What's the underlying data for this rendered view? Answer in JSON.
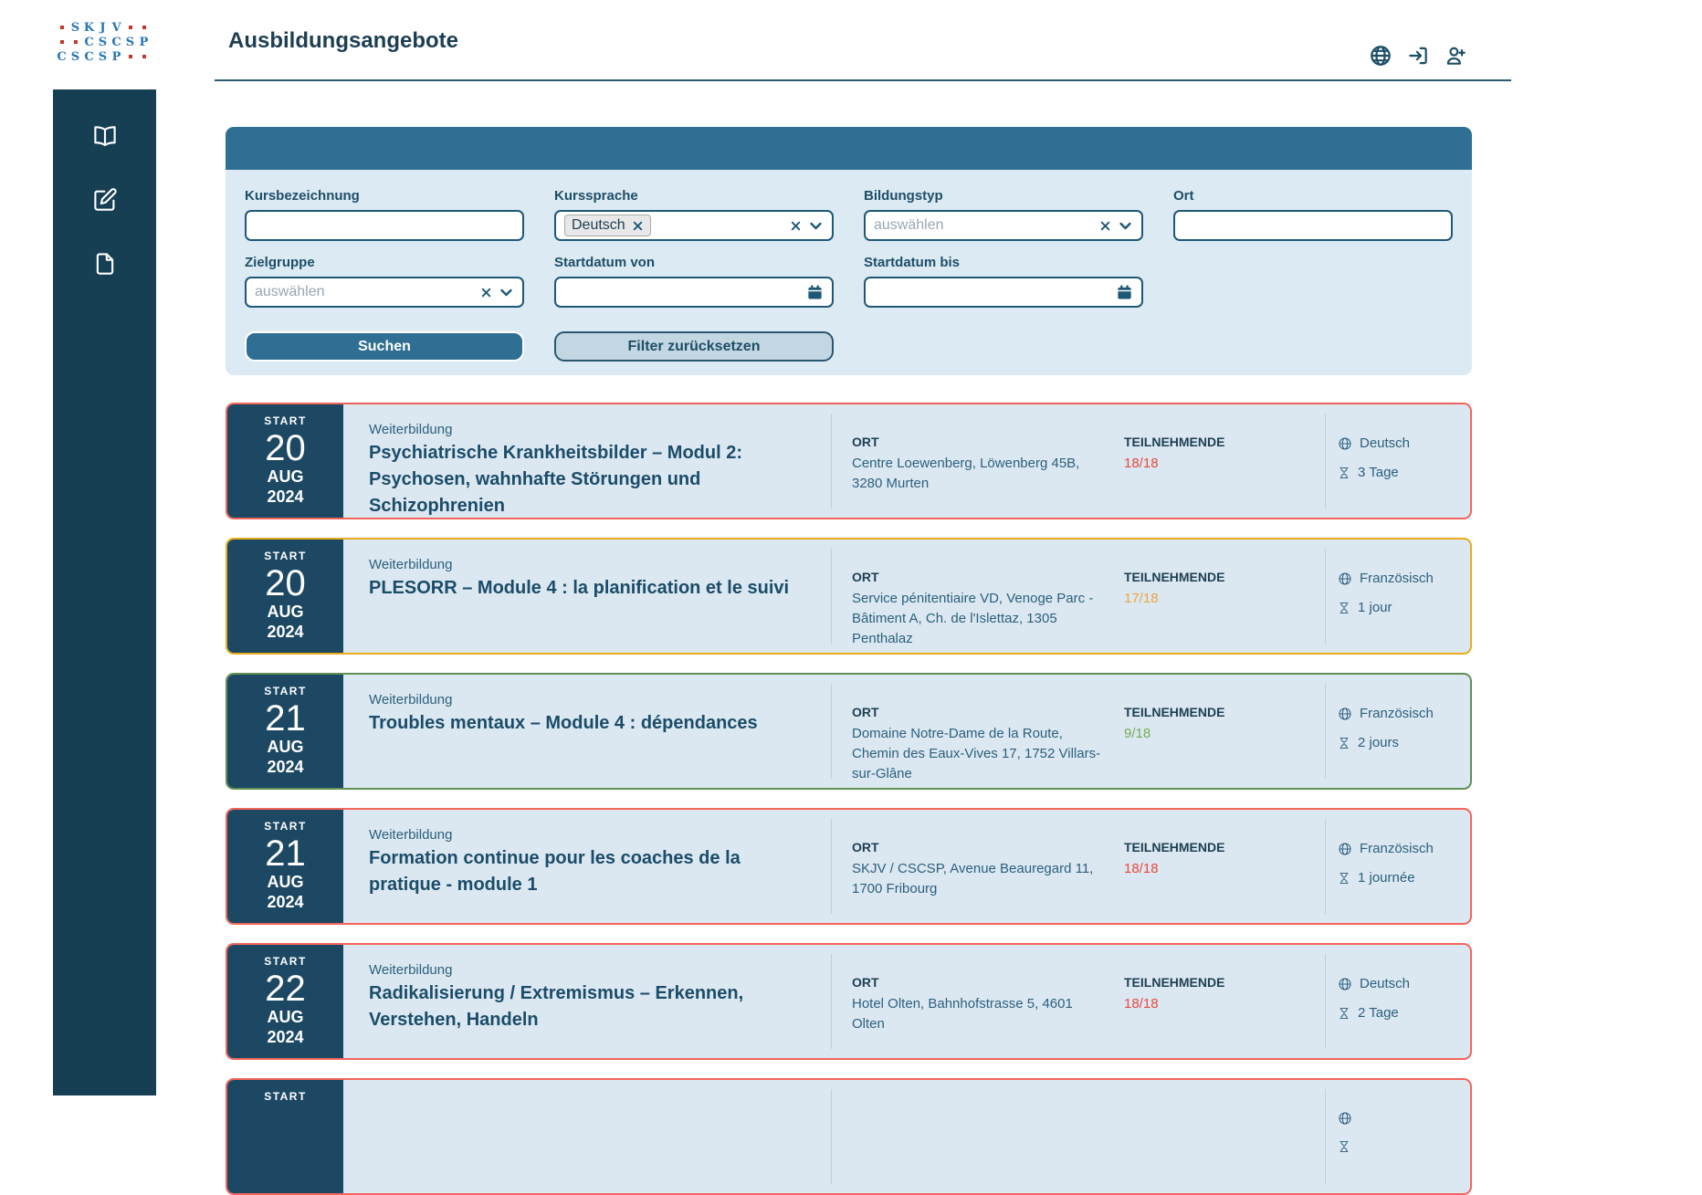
{
  "colors": {
    "sidebar_bg": "#173f54",
    "band_blue": "#2e6f93",
    "panel_bg": "#dceaf4",
    "card_bg": "#dbe8f2",
    "date_block_bg": "#1c4863",
    "heading_text": "#1d3e52",
    "body_text": "#2d5f7c",
    "status_red": "#e8493e",
    "status_orange": "#eda53c",
    "status_green": "#76ab57",
    "border_red": "#f3655a",
    "border_yellow": "#e8ac1e",
    "border_green": "#5f9054"
  },
  "logo": {
    "rows": [
      [
        "•",
        "S",
        "K",
        "J",
        "V",
        "•",
        "•"
      ],
      [
        "•",
        "•",
        "C",
        "S",
        "C",
        "S",
        "P"
      ],
      [
        "C",
        "S",
        "C",
        "S",
        "P",
        "•",
        "•"
      ]
    ]
  },
  "header": {
    "title": "Ausbildungsangebote",
    "icons": [
      "globe",
      "login",
      "user-plus"
    ]
  },
  "sidebar": {
    "items": [
      "book",
      "edit",
      "document"
    ]
  },
  "filter": {
    "fields": {
      "kursbezeichnung": {
        "label": "Kursbezeichnung",
        "value": ""
      },
      "kurssprache": {
        "label": "Kurssprache",
        "chips": [
          "Deutsch"
        ]
      },
      "bildungstyp": {
        "label": "Bildungstyp",
        "placeholder": "auswählen"
      },
      "ort": {
        "label": "Ort",
        "value": ""
      },
      "zielgruppe": {
        "label": "Zielgruppe",
        "placeholder": "auswählen"
      },
      "startdatum_von": {
        "label": "Startdatum von",
        "value": ""
      },
      "startdatum_bis": {
        "label": "Startdatum bis",
        "value": ""
      }
    },
    "buttons": {
      "search": "Suchen",
      "reset": "Filter zurücksetzen"
    }
  },
  "cards": [
    {
      "start_label": "START",
      "day": "20",
      "month": "AUG",
      "year": "2024",
      "category": "Weiterbildung",
      "title": "Psychiatrische Krankheitsbilder – Modul 2: Psychosen, wahnhafte Störungen und Schizophrenien",
      "ort_label": "ORT",
      "ort": "Centre Loewenberg, Löwenberg 45B, 3280 Murten",
      "participants_label": "TEILNEHMENDE",
      "participants": "18/18",
      "participants_color": "#e8493e",
      "language": "Deutsch",
      "duration": "3 Tage",
      "border_color": "#f3655a"
    },
    {
      "start_label": "START",
      "day": "20",
      "month": "AUG",
      "year": "2024",
      "category": "Weiterbildung",
      "title": "PLESORR – Module 4 : la planification et le suivi",
      "ort_label": "ORT",
      "ort": "Service pénitentiaire VD, Venoge Parc - Bâtiment A, Ch. de l'Islettaz, 1305 Penthalaz",
      "participants_label": "TEILNEHMENDE",
      "participants": "17/18",
      "participants_color": "#eda53c",
      "language": "Französisch",
      "duration": "1 jour",
      "border_color": "#e8ac1e"
    },
    {
      "start_label": "START",
      "day": "21",
      "month": "AUG",
      "year": "2024",
      "category": "Weiterbildung",
      "title": "Troubles mentaux – Module 4 : dépendances",
      "ort_label": "ORT",
      "ort": "Domaine Notre-Dame de la Route, Chemin des Eaux-Vives 17, 1752 Villars-sur-Glâne",
      "participants_label": "TEILNEHMENDE",
      "participants": "9/18",
      "participants_color": "#76ab57",
      "language": "Französisch",
      "duration": "2 jours",
      "border_color": "#5f9054"
    },
    {
      "start_label": "START",
      "day": "21",
      "month": "AUG",
      "year": "2024",
      "category": "Weiterbildung",
      "title": "Formation continue pour les coaches de la pratique - module 1",
      "ort_label": "ORT",
      "ort": "SKJV / CSCSP, Avenue Beauregard 11, 1700 Fribourg",
      "participants_label": "TEILNEHMENDE",
      "participants": "18/18",
      "participants_color": "#e8493e",
      "language": "Französisch",
      "duration": "1 journée",
      "border_color": "#f3655a"
    },
    {
      "start_label": "START",
      "day": "22",
      "month": "AUG",
      "year": "2024",
      "category": "Weiterbildung",
      "title": "Radikalisierung / Extremismus – Erkennen, Verstehen, Handeln",
      "ort_label": "ORT",
      "ort": "Hotel Olten, Bahnhofstrasse 5, 4601 Olten",
      "participants_label": "TEILNEHMENDE",
      "participants": "18/18",
      "participants_color": "#e8493e",
      "language": "Deutsch",
      "duration": "2 Tage",
      "border_color": "#f3655a"
    },
    {
      "start_label": "START",
      "day": "",
      "month": "",
      "year": "",
      "category": "",
      "title": "",
      "ort_label": "",
      "ort": "",
      "participants_label": "",
      "participants": "",
      "participants_color": "#e8493e",
      "language": "",
      "duration": "",
      "border_color": "#f3655a",
      "partial": true
    }
  ]
}
